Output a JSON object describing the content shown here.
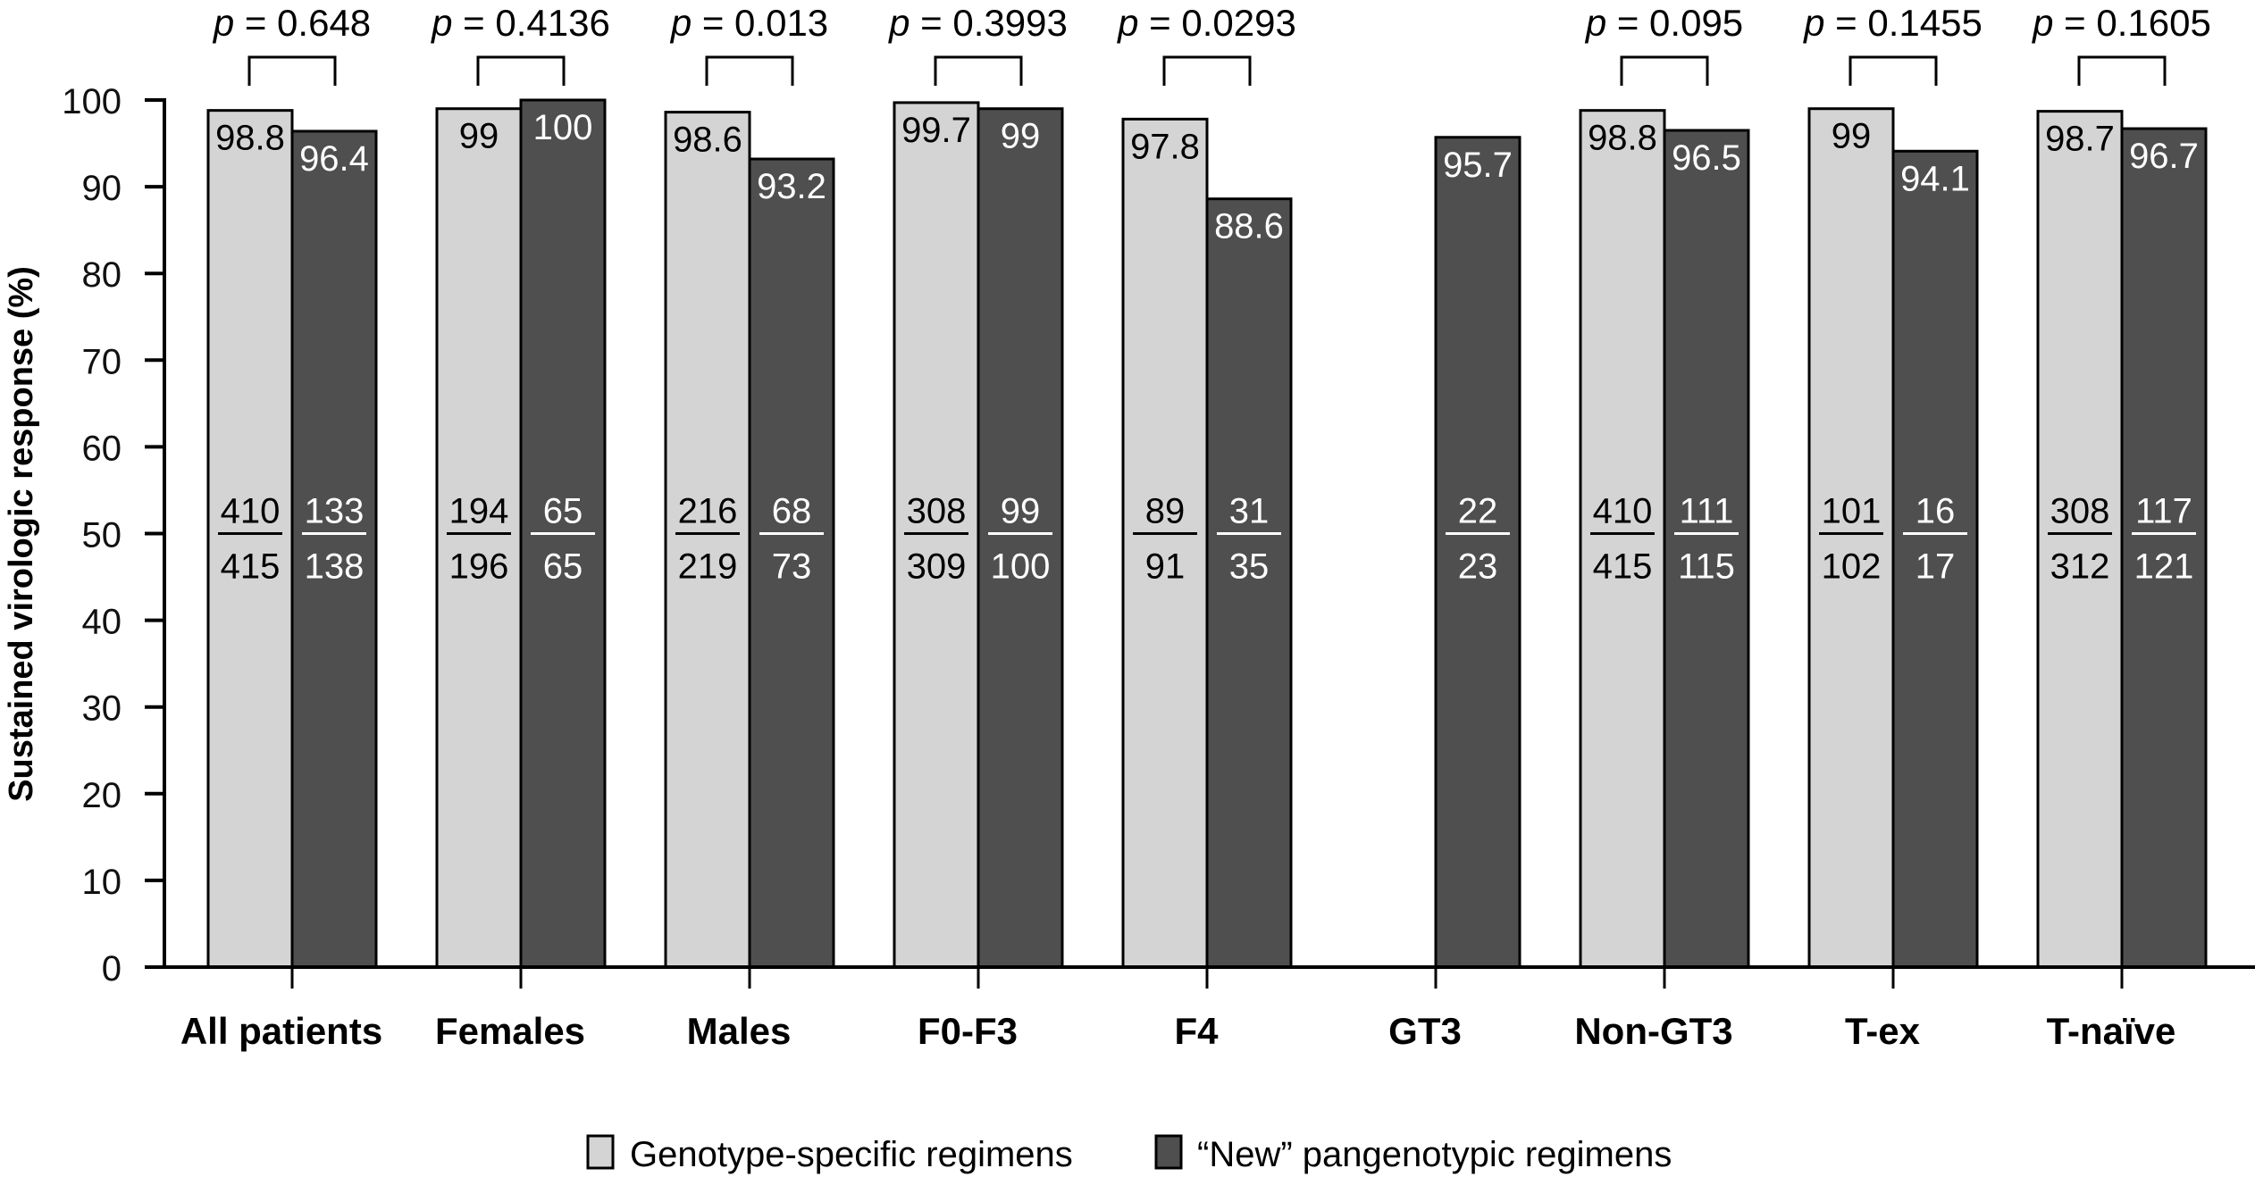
{
  "chart_data": {
    "type": "bar",
    "title": "",
    "xlabel": "",
    "ylabel": "Sustained virologic response (%)",
    "ylim": [
      0,
      100
    ],
    "yticks": [
      0,
      10,
      20,
      30,
      40,
      50,
      60,
      70,
      80,
      90,
      100
    ],
    "grid": false,
    "legend_position": "bottom-center",
    "categories": [
      "All patients",
      "Females",
      "Males",
      "F0-F3",
      "F4",
      "GT3",
      "Non-GT3",
      "T-ex",
      "T-naïve"
    ],
    "series": [
      {
        "name": "Genotype-specific regimens",
        "color": "#d4d4d4",
        "label_color": "#000000",
        "values": [
          98.8,
          99,
          98.6,
          99.7,
          97.8,
          null,
          98.8,
          99,
          98.7
        ],
        "labels": [
          "98.8",
          "99",
          "98.6",
          "99.7",
          "97.8",
          null,
          "98.8",
          "99",
          "98.7"
        ],
        "numerators": [
          410,
          194,
          216,
          308,
          89,
          null,
          410,
          101,
          308
        ],
        "denominators": [
          415,
          196,
          219,
          309,
          91,
          null,
          415,
          102,
          312
        ]
      },
      {
        "name": "“New” pangenotypic regimens",
        "color": "#4f4f4f",
        "label_color": "#ffffff",
        "values": [
          96.4,
          100,
          93.2,
          99,
          88.6,
          95.7,
          96.5,
          94.1,
          96.7
        ],
        "labels": [
          "96.4",
          "100",
          "93.2",
          "99",
          "88.6",
          "95.7",
          "96.5",
          "94.1",
          "96.7"
        ],
        "numerators": [
          133,
          65,
          68,
          99,
          31,
          22,
          111,
          16,
          117
        ],
        "denominators": [
          138,
          65,
          73,
          100,
          35,
          23,
          115,
          17,
          121
        ]
      }
    ],
    "p_values": [
      "p = 0.648",
      "p = 0.4136",
      "p = 0.013",
      "p = 0.3993",
      "p = 0.0293",
      null,
      "p = 0.095",
      "p = 0.1455",
      "p = 0.1605"
    ]
  }
}
